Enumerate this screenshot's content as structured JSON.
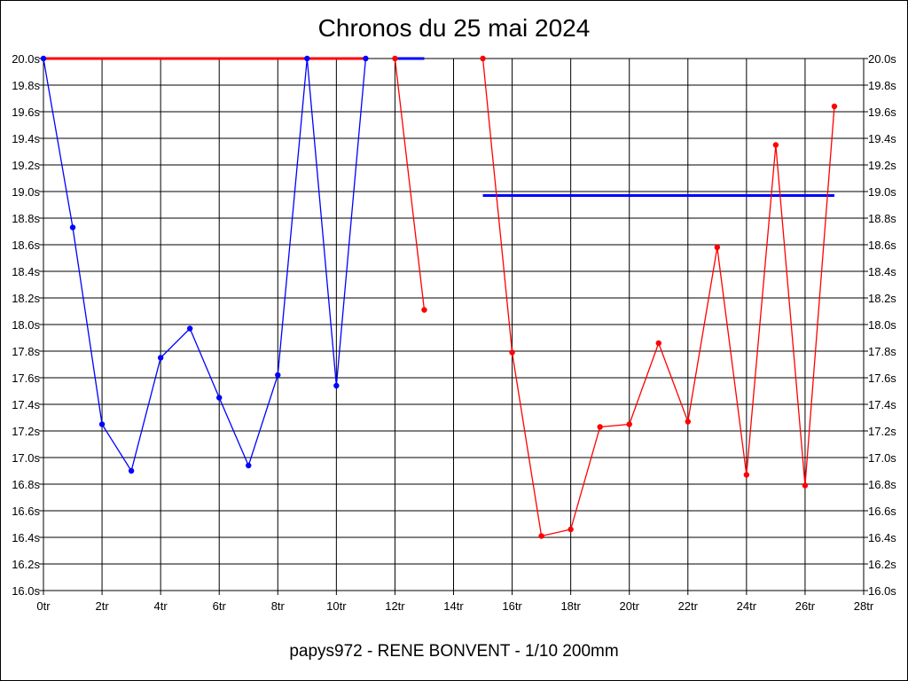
{
  "chart_data": {
    "type": "line",
    "title": "Chronos du 25 mai 2024",
    "subtitle": "papys972 - RENE BONVENT - 1/10 200mm",
    "xlabel": "",
    "ylabel": "",
    "xlim": [
      0,
      28
    ],
    "ylim": [
      16.0,
      20.0
    ],
    "x_ticks": [
      0,
      2,
      4,
      6,
      8,
      10,
      12,
      14,
      16,
      18,
      20,
      22,
      24,
      26,
      28
    ],
    "x_tick_labels": [
      "0tr",
      "2tr",
      "4tr",
      "6tr",
      "8tr",
      "10tr",
      "12tr",
      "14tr",
      "16tr",
      "18tr",
      "20tr",
      "22tr",
      "24tr",
      "26tr",
      "28tr"
    ],
    "y_ticks": [
      16.0,
      16.2,
      16.4,
      16.6,
      16.8,
      17.0,
      17.2,
      17.4,
      17.6,
      17.8,
      18.0,
      18.2,
      18.4,
      18.6,
      18.8,
      19.0,
      19.2,
      19.4,
      19.6,
      19.8,
      20.0
    ],
    "y_tick_labels": [
      "16.0s",
      "16.2s",
      "16.4s",
      "16.6s",
      "16.8s",
      "17.0s",
      "17.2s",
      "17.4s",
      "17.6s",
      "17.8s",
      "18.0s",
      "18.2s",
      "18.4s",
      "18.6s",
      "18.8s",
      "19.0s",
      "19.2s",
      "19.4s",
      "19.6s",
      "19.8s",
      "20.0s"
    ],
    "grid": true,
    "series": [
      {
        "color": "#0000ff",
        "x": [
          0,
          1,
          2,
          3,
          4,
          5,
          6,
          7,
          8,
          9,
          10,
          11
        ],
        "y": [
          20.0,
          18.73,
          17.25,
          16.9,
          17.75,
          17.97,
          17.45,
          16.94,
          17.62,
          20.0,
          17.54,
          20.0
        ]
      },
      {
        "color": "#ff0000",
        "x": [
          12,
          13
        ],
        "y": [
          20.0,
          18.11
        ]
      },
      {
        "color": "#ff0000",
        "x": [
          15,
          16,
          17,
          18,
          19,
          20,
          21,
          22,
          23,
          24,
          25,
          26,
          27
        ],
        "y": [
          20.0,
          17.79,
          16.41,
          16.46,
          17.23,
          17.25,
          17.86,
          17.27,
          18.58,
          16.87,
          19.35,
          16.79,
          19.64
        ]
      }
    ],
    "reference_lines": [
      {
        "color": "#ff0000",
        "x": [
          0,
          11
        ],
        "y": 20.0
      },
      {
        "color": "#0000ff",
        "x": [
          12,
          13
        ],
        "y": 20.0
      },
      {
        "color": "#0000ff",
        "x": [
          15,
          27
        ],
        "y": 18.97
      }
    ]
  }
}
